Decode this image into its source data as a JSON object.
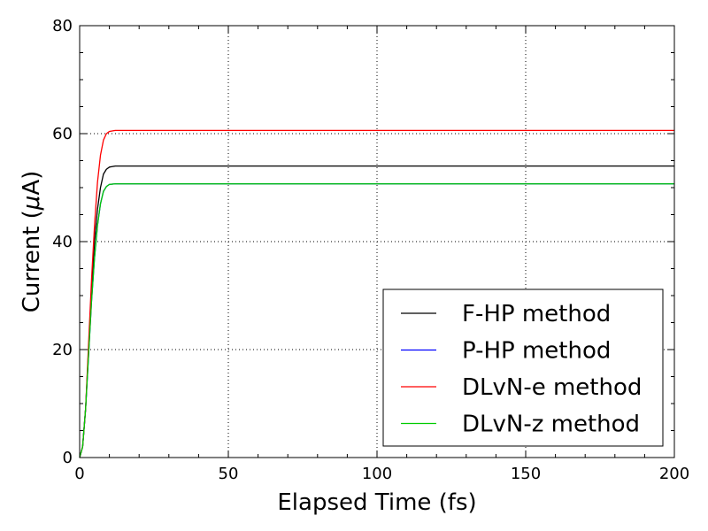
{
  "chart_data": {
    "type": "line",
    "xlabel": "Elapsed Time (fs)",
    "ylabel_prefix": "Current (",
    "ylabel_symbol": "μ",
    "ylabel_suffix": "A)",
    "xlim": [
      0,
      200
    ],
    "ylim": [
      0,
      80
    ],
    "xticks": [
      0,
      50,
      100,
      150,
      200
    ],
    "yticks": [
      0,
      20,
      40,
      60,
      80
    ],
    "xtick_labels": [
      "0",
      "50",
      "100",
      "150",
      "200"
    ],
    "ytick_labels": [
      "0",
      "20",
      "40",
      "60",
      "80"
    ],
    "grid": true,
    "legend_position": "lower-right",
    "series": [
      {
        "name": "F-HP method",
        "color": "#000000",
        "points": [
          [
            0,
            0
          ],
          [
            1,
            2
          ],
          [
            2,
            9
          ],
          [
            3,
            20
          ],
          [
            4,
            31
          ],
          [
            5,
            40
          ],
          [
            6,
            46
          ],
          [
            7,
            50
          ],
          [
            8,
            52.5
          ],
          [
            9,
            53.4
          ],
          [
            10,
            53.8
          ],
          [
            12,
            54.0
          ],
          [
            15,
            54.0
          ],
          [
            200,
            54.0
          ]
        ]
      },
      {
        "name": "P-HP method",
        "color": "#0000ff",
        "points": [
          [
            0,
            0
          ],
          [
            1,
            2
          ],
          [
            2,
            9
          ],
          [
            3,
            19
          ],
          [
            4,
            29
          ],
          [
            5,
            37
          ],
          [
            6,
            43
          ],
          [
            7,
            47
          ],
          [
            8,
            49.3
          ],
          [
            9,
            50.2
          ],
          [
            10,
            50.6
          ],
          [
            12,
            50.7
          ],
          [
            15,
            50.7
          ],
          [
            200,
            50.7
          ]
        ]
      },
      {
        "name": "DLvN-e method",
        "color": "#ff0000",
        "points": [
          [
            0,
            0
          ],
          [
            1,
            2
          ],
          [
            2,
            9
          ],
          [
            3,
            21
          ],
          [
            4,
            33
          ],
          [
            5,
            43
          ],
          [
            6,
            51
          ],
          [
            7,
            56
          ],
          [
            8,
            58.8
          ],
          [
            9,
            60
          ],
          [
            10,
            60.4
          ],
          [
            12,
            60.6
          ],
          [
            15,
            60.6
          ],
          [
            200,
            60.6
          ]
        ]
      },
      {
        "name": "DLvN-z method",
        "color": "#00cc00",
        "points": [
          [
            0,
            0
          ],
          [
            1,
            2
          ],
          [
            2,
            9
          ],
          [
            3,
            19
          ],
          [
            4,
            29
          ],
          [
            5,
            37
          ],
          [
            6,
            43
          ],
          [
            7,
            47
          ],
          [
            8,
            49.3
          ],
          [
            9,
            50.2
          ],
          [
            10,
            50.6
          ],
          [
            12,
            50.7
          ],
          [
            15,
            50.7
          ],
          [
            200,
            50.7
          ]
        ]
      }
    ]
  }
}
